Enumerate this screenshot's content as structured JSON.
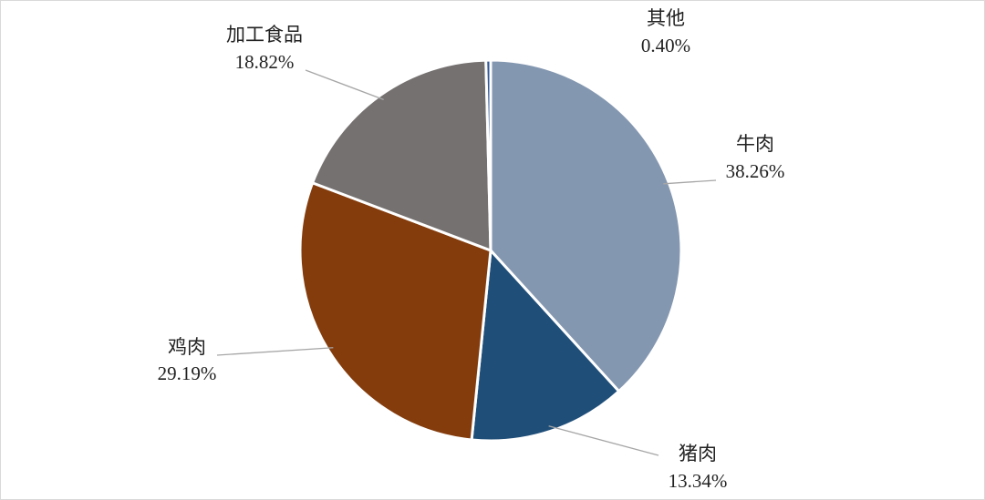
{
  "chart_data": {
    "type": "pie",
    "categories": [
      "牛肉",
      "猪肉",
      "鸡肉",
      "加工食品",
      "其他"
    ],
    "values": [
      38.26,
      13.34,
      29.19,
      18.82,
      0.4
    ],
    "value_labels": [
      "38.26%",
      "13.34%",
      "29.19%",
      "18.82%",
      "0.40%"
    ],
    "colors": [
      "#8497b0",
      "#1f4e79",
      "#843c0c",
      "#767171",
      "#2f5597"
    ]
  }
}
